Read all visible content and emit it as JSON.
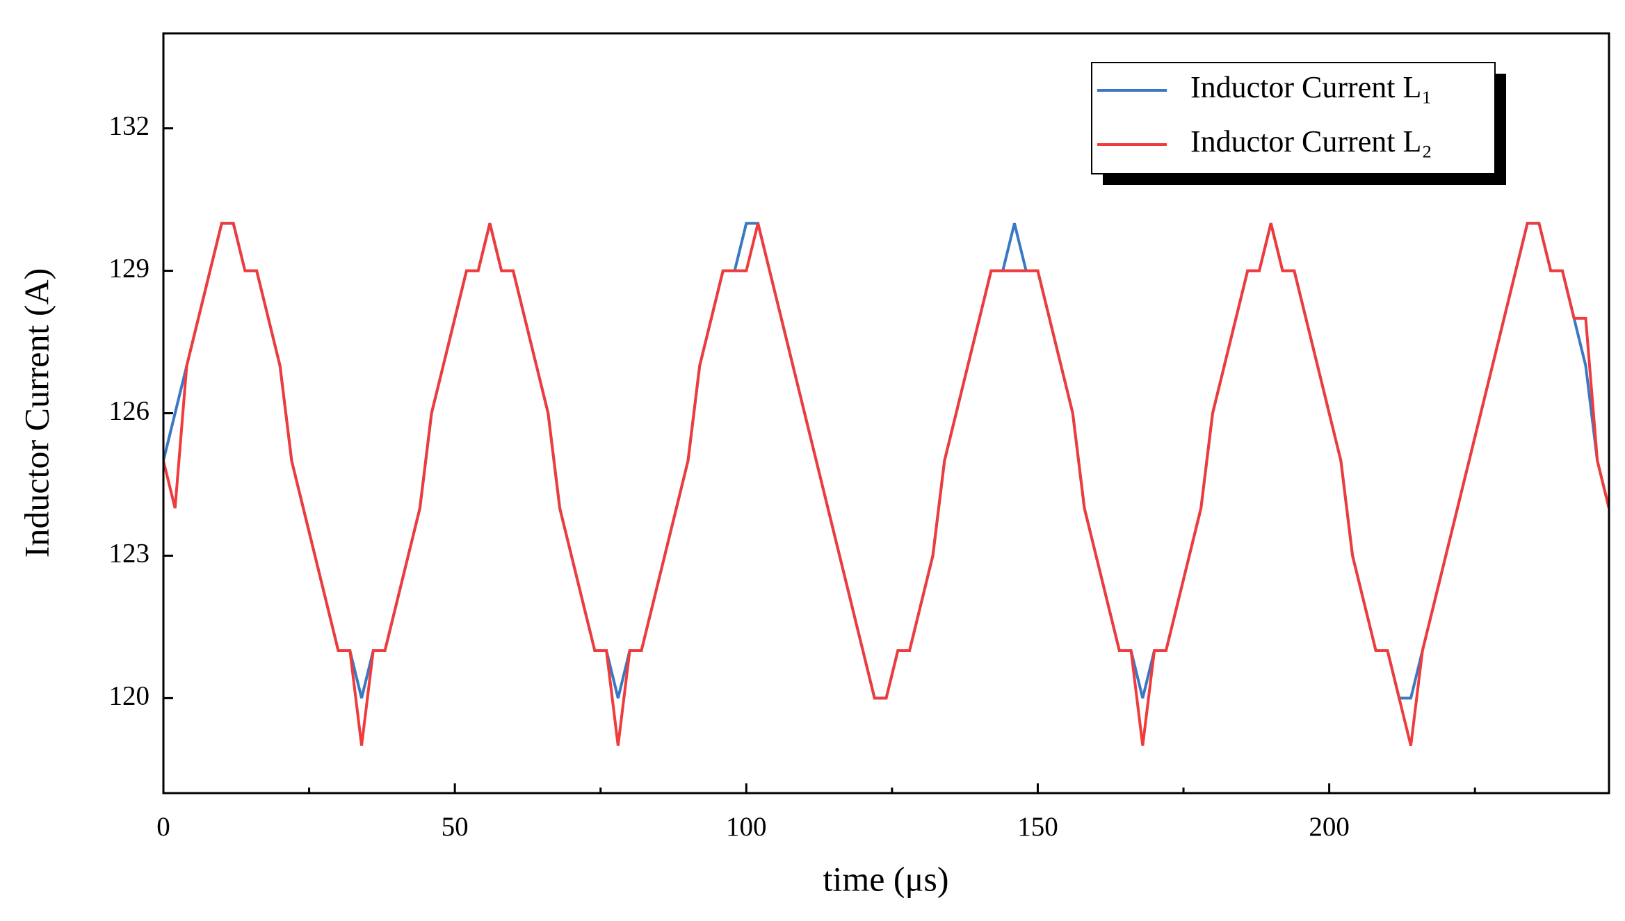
{
  "chart_data": {
    "type": "line",
    "xlabel": "time (μs)",
    "ylabel": "Inductor Current (A)",
    "x": [
      0,
      2,
      4,
      6,
      8,
      10,
      12,
      14,
      16,
      18,
      20,
      22,
      24,
      26,
      28,
      30,
      32,
      34,
      36,
      38,
      40,
      42,
      44,
      46,
      48,
      50,
      52,
      54,
      56,
      58,
      60,
      62,
      64,
      66,
      68,
      70,
      72,
      74,
      76,
      78,
      80,
      82,
      84,
      86,
      88,
      90,
      92,
      94,
      96,
      98,
      100,
      102,
      104,
      106,
      108,
      110,
      112,
      114,
      116,
      118,
      120,
      122,
      124,
      126,
      128,
      130,
      132,
      134,
      136,
      138,
      140,
      142,
      144,
      146,
      148,
      150,
      152,
      154,
      156,
      158,
      160,
      162,
      164,
      166,
      168,
      170,
      172,
      174,
      176,
      178,
      180,
      182,
      184,
      186,
      188,
      190,
      192,
      194,
      196,
      198,
      200,
      202,
      204,
      206,
      208,
      210,
      212,
      214,
      216,
      218,
      220,
      222,
      224,
      226,
      228,
      230,
      232,
      234,
      236,
      238,
      240,
      242,
      244,
      246,
      248
    ],
    "series": [
      {
        "name": "Inductor Current L₁",
        "color": "#3a78c4",
        "values": [
          125,
          126,
          127,
          128,
          129,
          130,
          130,
          129,
          129,
          128,
          127,
          125,
          124,
          123,
          122,
          121,
          121,
          120,
          121,
          121,
          122,
          123,
          124,
          126,
          127,
          128,
          129,
          129,
          130,
          129,
          129,
          128,
          127,
          126,
          124,
          123,
          122,
          121,
          121,
          120,
          121,
          121,
          122,
          123,
          124,
          125,
          127,
          128,
          129,
          129,
          130,
          130,
          129,
          128,
          127,
          126,
          125,
          124,
          123,
          122,
          121,
          120,
          120,
          121,
          121,
          122,
          123,
          125,
          126,
          127,
          128,
          129,
          129,
          130,
          129,
          129,
          128,
          127,
          126,
          124,
          123,
          122,
          121,
          121,
          120,
          121,
          121,
          122,
          123,
          124,
          126,
          127,
          128,
          129,
          129,
          130,
          129,
          129,
          128,
          127,
          126,
          125,
          123,
          122,
          121,
          121,
          120,
          120,
          121,
          122,
          123,
          124,
          125,
          126,
          127,
          128,
          129,
          130,
          130,
          129,
          129,
          128,
          127,
          125,
          124
        ]
      },
      {
        "name": "Inductor Current L₂",
        "color": "#ef3b3b",
        "values": [
          125,
          124,
          127,
          128,
          129,
          130,
          130,
          129,
          129,
          128,
          127,
          125,
          124,
          123,
          122,
          121,
          121,
          119,
          121,
          121,
          122,
          123,
          124,
          126,
          127,
          128,
          129,
          129,
          130,
          129,
          129,
          128,
          127,
          126,
          124,
          123,
          122,
          121,
          121,
          119,
          121,
          121,
          122,
          123,
          124,
          125,
          127,
          128,
          129,
          129,
          129,
          130,
          129,
          128,
          127,
          126,
          125,
          124,
          123,
          122,
          121,
          120,
          120,
          121,
          121,
          122,
          123,
          125,
          126,
          127,
          128,
          129,
          129,
          129,
          129,
          129,
          128,
          127,
          126,
          124,
          123,
          122,
          121,
          121,
          119,
          121,
          121,
          122,
          123,
          124,
          126,
          127,
          128,
          129,
          129,
          130,
          129,
          129,
          128,
          127,
          126,
          125,
          123,
          122,
          121,
          121,
          120,
          119,
          121,
          122,
          123,
          124,
          125,
          126,
          127,
          128,
          129,
          130,
          130,
          129,
          129,
          128,
          128,
          125,
          124
        ]
      }
    ],
    "xlim": [
      0,
      248
    ],
    "xticks": [
      0,
      50,
      100,
      150,
      200
    ],
    "xminorticks": [
      25,
      75,
      125,
      175,
      225
    ],
    "ylim": [
      118,
      134
    ],
    "yticks": [
      120,
      123,
      126,
      129,
      132
    ],
    "legend": "upper right"
  }
}
